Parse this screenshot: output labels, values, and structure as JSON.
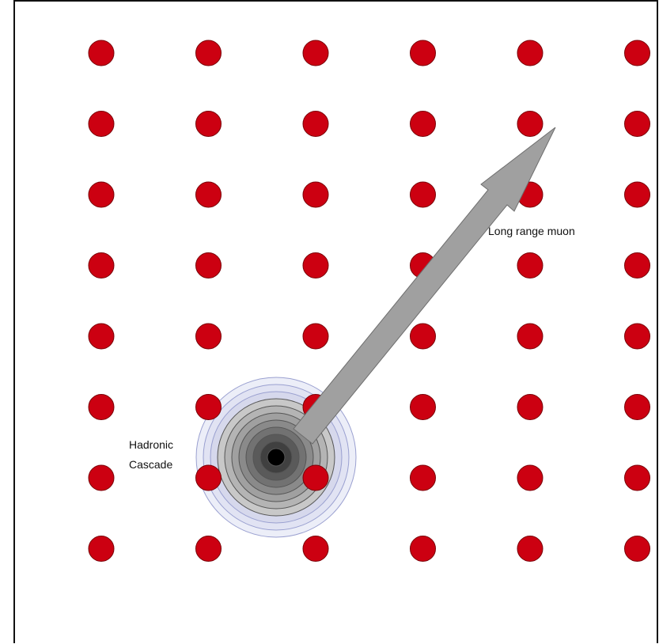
{
  "diagram": {
    "labels": {
      "muon": "Long range muon",
      "cascade_line1": "Hadronic",
      "cascade_line2": "Cascade"
    },
    "sensor_grid": {
      "rows": 8,
      "columns": 6
    },
    "colors": {
      "sensor_fill": "#cc0011",
      "sensor_stroke": "#7a0008",
      "arrow_fill": "#a0a0a0",
      "arrow_stroke": "#6e6e6e",
      "cascade_outer": "#e8eaf6",
      "cascade_outer_stroke": "#9aa0d0",
      "cascade_core": "#000000"
    },
    "icons": {
      "sensor": "red-circle",
      "muon_track": "arrow",
      "cascade": "concentric-rings"
    }
  }
}
